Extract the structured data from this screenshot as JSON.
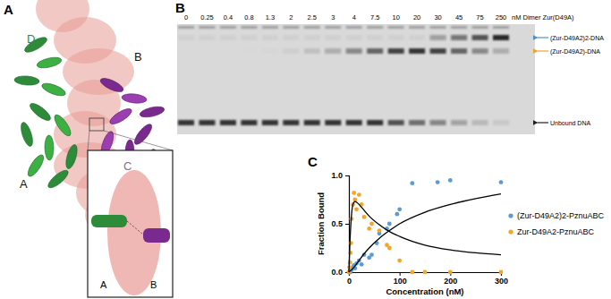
{
  "panels": {
    "a": {
      "label": "A",
      "chain_labels": [
        "D",
        "B",
        "A",
        "C"
      ],
      "inset_labels": [
        "A",
        "B"
      ]
    },
    "b": {
      "label": "B",
      "lanes": [
        0,
        0.25,
        0.4,
        0.8,
        1.3,
        2,
        2.5,
        3,
        4,
        7.5,
        10,
        20,
        30,
        45,
        75,
        250
      ],
      "unit": "nM Dimer Zur(D49A)",
      "bands": [
        {
          "label": "(Zur-D49A2)2-DNA",
          "color": "#4a90c8"
        },
        {
          "label": "(Zur-D49A2)-DNA",
          "color": "#f0a030"
        },
        {
          "label": "Unbound DNA",
          "color": "#222222"
        }
      ]
    },
    "c": {
      "label": "C"
    }
  },
  "chart_data": {
    "type": "scatter",
    "x_label": "Concentration (nM)",
    "y_label": "Fraction Bound",
    "xlim": [
      0,
      300
    ],
    "xticks": [
      0,
      100,
      200,
      300
    ],
    "ylim": [
      0,
      1
    ],
    "yticks": [
      {
        "value": 0,
        "label": "0.0"
      },
      {
        "value": 0.5,
        "label": "0.5"
      },
      {
        "value": 1,
        "label": "1.0"
      }
    ],
    "grid": false,
    "legend": "right",
    "series": [
      {
        "name": "(Zur-D49A2)2-PznuABC",
        "color": "#5b9bd5",
        "type": "scatter",
        "marker": "circle",
        "x": [
          0,
          1,
          2,
          3,
          5,
          8,
          10,
          12,
          15,
          20,
          25,
          30,
          40,
          45,
          55,
          60,
          75,
          80,
          95,
          100,
          125,
          175,
          200,
          300
        ],
        "values": [
          0,
          0,
          0.01,
          0,
          0.02,
          0.05,
          0.07,
          0.04,
          0.09,
          0.12,
          0.08,
          0.18,
          0.15,
          0.18,
          0.3,
          0.4,
          0.45,
          0.5,
          0.6,
          0.65,
          0.92,
          0.93,
          0.95,
          0.93
        ]
      },
      {
        "name": "Zur-D49A2-PznuABC",
        "color": "#f5a623",
        "type": "scatter",
        "marker": "circle",
        "x": [
          0,
          1,
          2,
          3,
          4,
          5,
          8,
          10,
          12,
          15,
          20,
          25,
          30,
          40,
          45,
          60,
          75,
          80,
          100,
          125,
          150,
          200,
          300
        ],
        "values": [
          0,
          0.05,
          0.1,
          0.2,
          0.3,
          0.55,
          0.7,
          0.82,
          0.75,
          0.65,
          0.8,
          0.7,
          0.57,
          0.45,
          0.5,
          0.43,
          0.28,
          0.25,
          0.12,
          0,
          0,
          0,
          0
        ]
      },
      {
        "color": "#000000",
        "type": "line",
        "line_style": "solid",
        "x": [
          0,
          2,
          5,
          8,
          12,
          16,
          20,
          30,
          40,
          60,
          80,
          100,
          150,
          200,
          250,
          300
        ],
        "values": [
          0,
          0.3,
          0.58,
          0.7,
          0.73,
          0.72,
          0.7,
          0.64,
          0.58,
          0.49,
          0.42,
          0.37,
          0.28,
          0.23,
          0.2,
          0.18
        ]
      },
      {
        "color": "#000000",
        "type": "line",
        "line_style": "solid",
        "x": [
          0,
          10,
          20,
          30,
          40,
          60,
          80,
          100,
          150,
          200,
          250,
          300
        ],
        "values": [
          0,
          0.05,
          0.12,
          0.19,
          0.25,
          0.35,
          0.43,
          0.5,
          0.62,
          0.7,
          0.76,
          0.81
        ]
      }
    ]
  }
}
